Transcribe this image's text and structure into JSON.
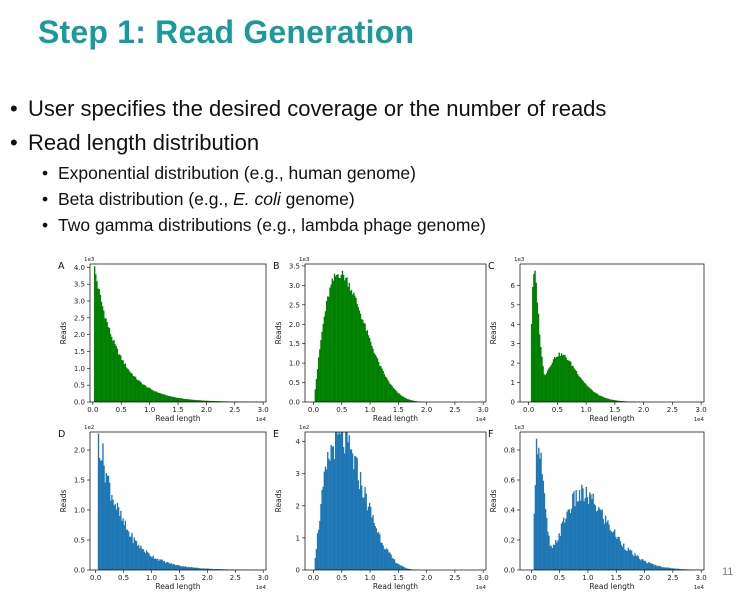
{
  "slide": {
    "title": "Step 1: Read Generation",
    "bullets": [
      "User specifies the desired coverage or the number of reads",
      "Read length distribution"
    ],
    "sub_bullets": [
      {
        "pre": "Exponential distribution (e.g., human genome)",
        "ital": "",
        "post": ""
      },
      {
        "pre": "Beta distribution (e.g., ",
        "ital": "E. coli",
        "post": " genome)"
      },
      {
        "pre": "Two gamma distributions (e.g., lambda phage genome)",
        "ital": "",
        "post": ""
      }
    ],
    "page_number": "11"
  },
  "chart_data": [
    {
      "type": "bar",
      "panel": "A",
      "color": "#008000",
      "xlabel": "Read length",
      "ylabel": "Reads",
      "x_scale_label": "1e4",
      "y_scale_label": "1e3",
      "xlim": [
        -0.05,
        3.05
      ],
      "ylim": [
        0,
        4.1
      ],
      "xticks": [
        "0.0",
        "0.5",
        "1.0",
        "1.5",
        "2.0",
        "2.5",
        "3.0"
      ],
      "yticks": [
        "0.0",
        "0.5",
        "1.0",
        "1.5",
        "2.0",
        "2.5",
        "3.0",
        "3.5",
        "4.0"
      ],
      "curve": {
        "kind": "exp",
        "peak": 4.05,
        "start": 0.02,
        "scale": 0.72
      },
      "num_bins": 150,
      "x_max": 3.0
    },
    {
      "type": "bar",
      "panel": "B",
      "color": "#008000",
      "xlabel": "Read length",
      "ylabel": "Reads",
      "x_scale_label": "1e4",
      "y_scale_label": "1e3",
      "xlim": [
        -0.15,
        3.05
      ],
      "ylim": [
        0,
        3.55
      ],
      "xticks": [
        "0.0",
        "0.5",
        "1.0",
        "1.5",
        "2.0",
        "2.5",
        "3.0"
      ],
      "yticks": [
        "0.0",
        "0.5",
        "1.0",
        "1.5",
        "2.0",
        "2.5",
        "3.0",
        "3.5"
      ],
      "curve": {
        "kind": "beta",
        "peak": 3.3,
        "mode": 0.42,
        "shape_a": 2.2,
        "shape_b": 5.5,
        "x_end": 2.2
      },
      "num_bins": 150,
      "x_max": 3.0
    },
    {
      "type": "bar",
      "panel": "C",
      "color": "#008000",
      "xlabel": "Read length",
      "ylabel": "Reads",
      "x_scale_label": "1e4",
      "y_scale_label": "1e3",
      "xlim": [
        -0.15,
        3.05
      ],
      "ylim": [
        0,
        7.1
      ],
      "xticks": [
        "0.0",
        "0.5",
        "1.0",
        "1.5",
        "2.0",
        "2.5",
        "3.0"
      ],
      "yticks": [
        "0",
        "1",
        "2",
        "3",
        "4",
        "5",
        "6"
      ],
      "curve": {
        "kind": "gamma2",
        "g1": {
          "amp": 6.6,
          "mode": 0.1,
          "width": 0.09
        },
        "g2": {
          "amp": 2.45,
          "mode": 0.55,
          "width": 0.3
        }
      },
      "num_bins": 150,
      "x_max": 3.0
    },
    {
      "type": "bar",
      "panel": "D",
      "color": "#1f77b4",
      "xlabel": "Read length",
      "ylabel": "Reads",
      "x_scale_label": "1e4",
      "y_scale_label": "1e2",
      "xlim": [
        -0.1,
        3.05
      ],
      "ylim": [
        0,
        2.3
      ],
      "xticks": [
        "0.0",
        "0.5",
        "1.0",
        "1.5",
        "2.0",
        "2.5",
        "3.0"
      ],
      "yticks": [
        "0.0",
        "0.5",
        "1.0",
        "1.5",
        "2.0"
      ],
      "curve": {
        "kind": "exp",
        "peak": 2.25,
        "start": 0.05,
        "scale": 0.72
      },
      "num_bins": 150,
      "x_max": 3.0,
      "noisy": true
    },
    {
      "type": "bar",
      "panel": "E",
      "color": "#1f77b4",
      "xlabel": "Read length",
      "ylabel": "Reads",
      "x_scale_label": "1e4",
      "y_scale_label": "1e2",
      "xlim": [
        -0.15,
        3.05
      ],
      "ylim": [
        0,
        4.3
      ],
      "xticks": [
        "0.0",
        "0.5",
        "1.0",
        "1.5",
        "2.0",
        "2.5",
        "3.0"
      ],
      "yticks": [
        "0",
        "1",
        "2",
        "3",
        "4"
      ],
      "curve": {
        "kind": "beta",
        "peak": 4.1,
        "mode": 0.5,
        "shape_a": 2.2,
        "shape_b": 5.0,
        "x_end": 2.0
      },
      "num_bins": 150,
      "x_max": 3.0,
      "noisy": true
    },
    {
      "type": "bar",
      "panel": "F",
      "color": "#1f77b4",
      "xlabel": "Read length",
      "ylabel": "Reads",
      "x_scale_label": "1e4",
      "y_scale_label": "1e3",
      "xlim": [
        -0.2,
        3.05
      ],
      "ylim": [
        0,
        0.92
      ],
      "xticks": [
        "0.0",
        "0.5",
        "1.0",
        "1.5",
        "2.0",
        "2.5",
        "3.0"
      ],
      "yticks": [
        "0.0",
        "0.2",
        "0.4",
        "0.6",
        "0.8"
      ],
      "curve": {
        "kind": "gamma2",
        "g1": {
          "amp": 0.88,
          "mode": 0.12,
          "width": 0.11
        },
        "g2": {
          "amp": 0.5,
          "mode": 0.9,
          "width": 0.45
        }
      },
      "num_bins": 150,
      "x_max": 3.0,
      "noisy": true
    }
  ]
}
